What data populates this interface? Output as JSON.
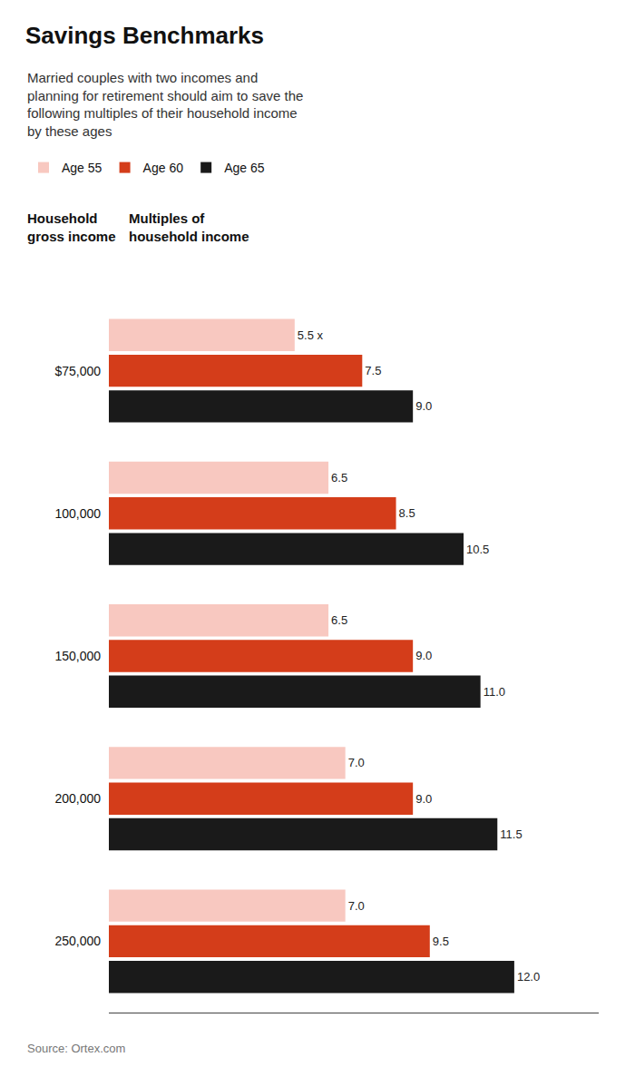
{
  "chart_data": {
    "type": "bar",
    "orientation": "horizontal",
    "title": "Savings Benchmarks",
    "subtitle": "Married couples with two incomes and\nplanning for retirement should aim to save the\nfollowing multiples of their household income\nby these ages",
    "xlabel": "Multiples of\nhousehold income",
    "ylabel": "Household\ngross income",
    "annotations": [
      "Source: Ortex.com"
    ],
    "categories": [
      "$75,000",
      "100,000",
      "150,000",
      "200,000",
      "250,000"
    ],
    "series": [
      {
        "name": "Age 55",
        "color": "#f8c8c0",
        "values": [
          5.5,
          6.5,
          6.5,
          7.0,
          7.0
        ],
        "value_labels": [
          "5.5 x",
          "6.5",
          "6.5",
          "7.0",
          "7.0"
        ]
      },
      {
        "name": "Age 60",
        "color": "#d43d1a",
        "values": [
          7.5,
          8.5,
          9.0,
          9.0,
          9.5
        ],
        "value_labels": [
          "7.5",
          "8.5",
          "9.0",
          "9.0",
          "9.5"
        ]
      },
      {
        "name": "Age 65",
        "color": "#1a1a1a",
        "values": [
          9.0,
          10.5,
          11.0,
          11.5,
          12.0
        ],
        "value_labels": [
          "9.0",
          "10.5",
          "11.0",
          "11.5",
          "12.0"
        ]
      }
    ],
    "xlim": [
      0,
      14.5
    ],
    "data_labels": true,
    "legend": "top left",
    "grid": false,
    "tick_labels": "y"
  }
}
